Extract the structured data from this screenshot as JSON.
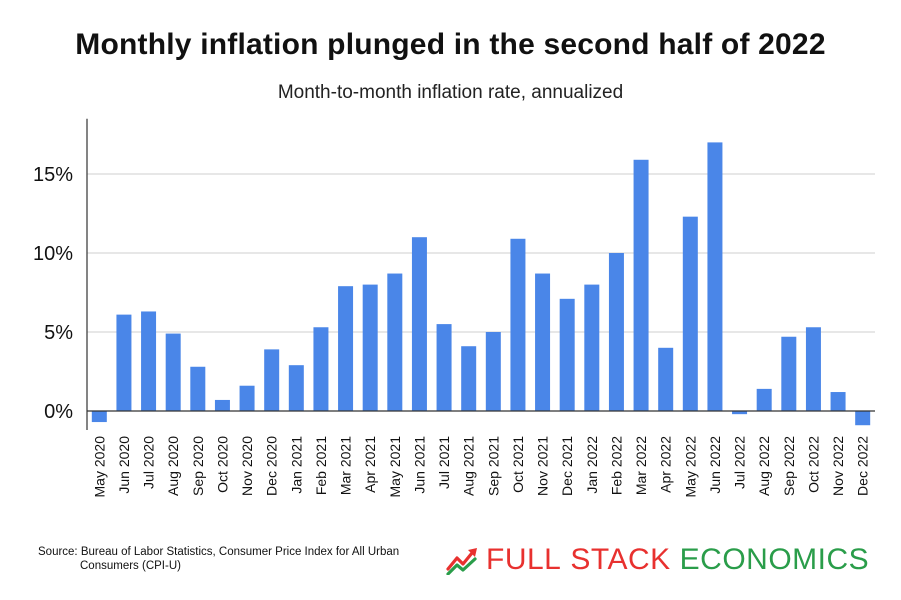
{
  "header": {
    "title": "Monthly inflation plunged in the second half of 2022",
    "subtitle": "Month-to-month inflation rate, annualized"
  },
  "footer": {
    "source_line1": "Source: Bureau of Labor Statistics, Consumer Price Index for All Urban",
    "source_line2": "Consumers (CPI-U)",
    "logo_word1": "FULL",
    "logo_word2": "STACK",
    "logo_word3": "ECONOMICS"
  },
  "colors": {
    "bar": "#4a86e8",
    "grid": "#cfcfcf",
    "axis": "#333333",
    "logo_red": "#e8312f",
    "logo_green": "#2a9d4a"
  },
  "chart_data": {
    "type": "bar",
    "categories": [
      "May 2020",
      "Jun 2020",
      "Jul 2020",
      "Aug 2020",
      "Sep 2020",
      "Oct 2020",
      "Nov 2020",
      "Dec 2020",
      "Jan 2021",
      "Feb 2021",
      "Mar 2021",
      "Apr 2021",
      "May 2021",
      "Jun 2021",
      "Jul 2021",
      "Aug 2021",
      "Sep 2021",
      "Oct 2021",
      "Nov 2021",
      "Dec 2021",
      "Jan 2022",
      "Feb 2022",
      "Mar 2022",
      "Apr 2022",
      "May 2022",
      "Jun 2022",
      "Jul 2022",
      "Aug 2022",
      "Sep 2022",
      "Oct 2022",
      "Nov 2022",
      "Dec 2022"
    ],
    "values": [
      -0.7,
      6.1,
      6.3,
      4.9,
      2.8,
      0.7,
      1.6,
      3.9,
      2.9,
      5.3,
      7.9,
      8.0,
      8.7,
      11.0,
      5.5,
      4.1,
      5.0,
      10.9,
      8.7,
      7.1,
      8.0,
      10.0,
      15.9,
      4.0,
      12.3,
      17.0,
      -0.2,
      1.4,
      4.7,
      5.3,
      1.2,
      -0.9
    ],
    "y_ticks": [
      0,
      5,
      10,
      15
    ],
    "y_tick_labels": [
      "0%",
      "5%",
      "10%",
      "15%"
    ],
    "ylim": [
      -1.2,
      18.5
    ],
    "grid": true,
    "legend": "none"
  }
}
